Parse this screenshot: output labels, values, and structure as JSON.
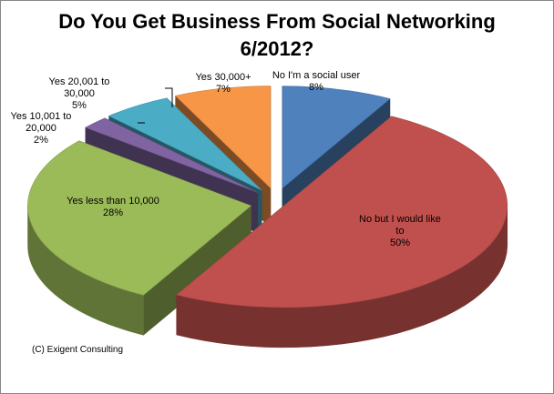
{
  "chart_data": {
    "type": "pie",
    "style": "3d-exploded",
    "title": "Do You Get Business From Social Networking\n6/2012?",
    "slices": [
      {
        "label_lines": [
          "No  I'm a social user",
          "8%"
        ],
        "value": 8,
        "color": "#4F81BD"
      },
      {
        "label_lines": [
          "No but I would like",
          "to",
          "50%"
        ],
        "value": 50,
        "color": "#C0504D"
      },
      {
        "label_lines": [
          "Yes less than 10,000",
          "28%"
        ],
        "value": 28,
        "color": "#9BBB59"
      },
      {
        "label_lines": [
          "Yes 10,001 to",
          "20,000",
          "2%"
        ],
        "value": 2,
        "color": "#8064A2"
      },
      {
        "label_lines": [
          "Yes 20,001 to",
          "30,000",
          "5%"
        ],
        "value": 5,
        "color": "#4BACC6"
      },
      {
        "label_lines": [
          "Yes 30,000+",
          "7%"
        ],
        "value": 7,
        "color": "#F79646"
      }
    ],
    "data_labels": "category name and percent",
    "legend": "none"
  },
  "footer": {
    "credit": "(C) Exigent Consulting"
  }
}
